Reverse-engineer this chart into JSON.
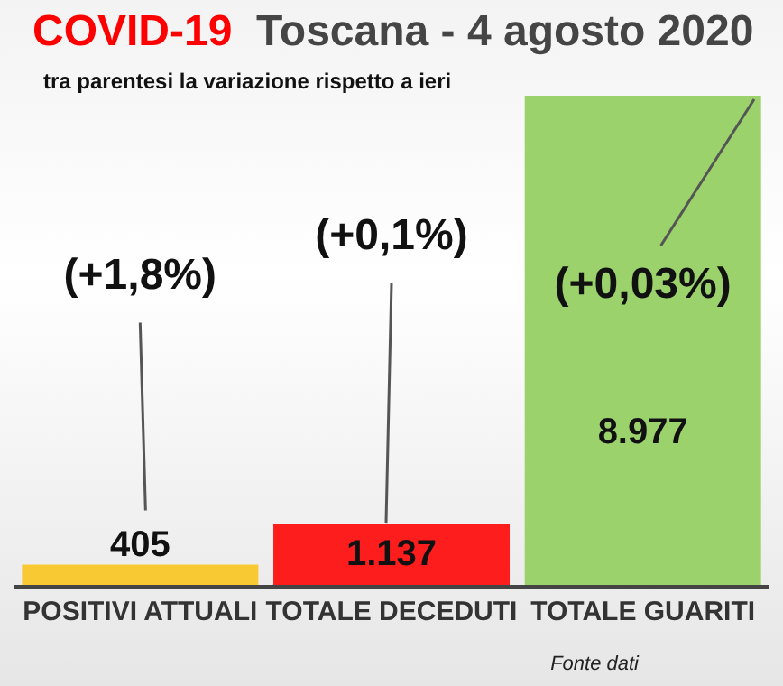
{
  "chart_data": {
    "type": "bar",
    "title": "COVID-19  Toscana - 4 agosto 2020",
    "subtitle": "tra parentesi la variazione rispetto a ieri",
    "categories": [
      "POSITIVI ATTUALI",
      "TOTALE DECEDUTI",
      "TOTALE GUARITI"
    ],
    "values": [
      405,
      1137,
      8977
    ],
    "colors": [
      "#f9c933",
      "#fe1d1d",
      "#9bd26c"
    ],
    "value_labels": [
      "405",
      "1.137",
      "8.977"
    ],
    "tick_labels": "x",
    "annotations": [
      "(+1,8%)",
      "(+0,1%)",
      "(+0,03%)",
      "Fonte dati"
    ]
  }
}
